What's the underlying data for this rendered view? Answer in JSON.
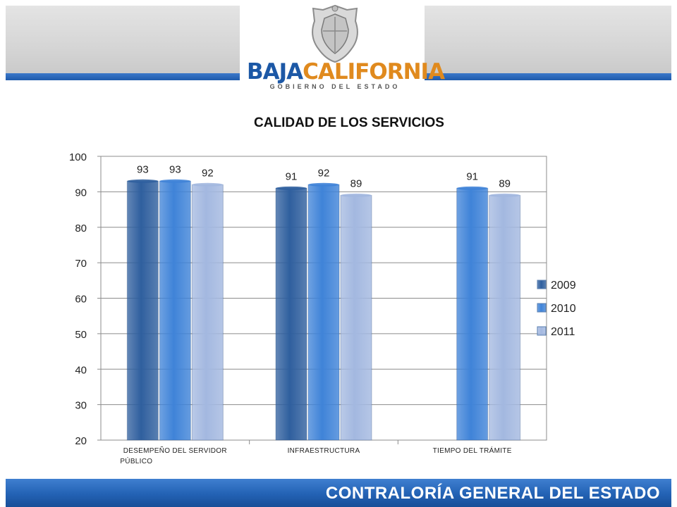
{
  "header": {
    "logo_word_1": "BAJA",
    "logo_word_2": "CALIFORNIA",
    "logo_subtitle": "GOBIERNO DEL ESTADO",
    "seal_icon": "state-coat-of-arms-icon"
  },
  "footer": {
    "label": "CONTRALORÍA GENERAL DEL ESTADO"
  },
  "colors": {
    "2009": "#2f5f9e",
    "2010": "#3f83d8",
    "2011": "#a3b8e0",
    "stripe": "#1f5bab",
    "brand_orange": "#e08a1e"
  },
  "chart_data": {
    "type": "bar",
    "title": "CALIDAD DE LOS SERVICIOS",
    "categories": [
      "DESEMPEÑO DEL SERVIDOR PÚBLICO",
      "INFRAESTRUCTURA",
      "TIEMPO DEL TRÁMITE"
    ],
    "category_label_lines": [
      [
        "DESEMPEÑO DEL SERVIDOR",
        "PÚBLICO"
      ],
      [
        "INFRAESTRUCTURA"
      ],
      [
        "TIEMPO DEL TRÁMITE"
      ]
    ],
    "series": [
      {
        "name": "2009",
        "values": [
          93,
          91,
          null
        ]
      },
      {
        "name": "2010",
        "values": [
          93,
          92,
          91
        ]
      },
      {
        "name": "2011",
        "values": [
          92,
          89,
          89
        ]
      }
    ],
    "ylim": [
      20,
      100
    ],
    "yticks": [
      20,
      30,
      40,
      50,
      60,
      70,
      80,
      90,
      100
    ],
    "grid": true,
    "legend": "right",
    "xlabel": "",
    "ylabel": ""
  }
}
